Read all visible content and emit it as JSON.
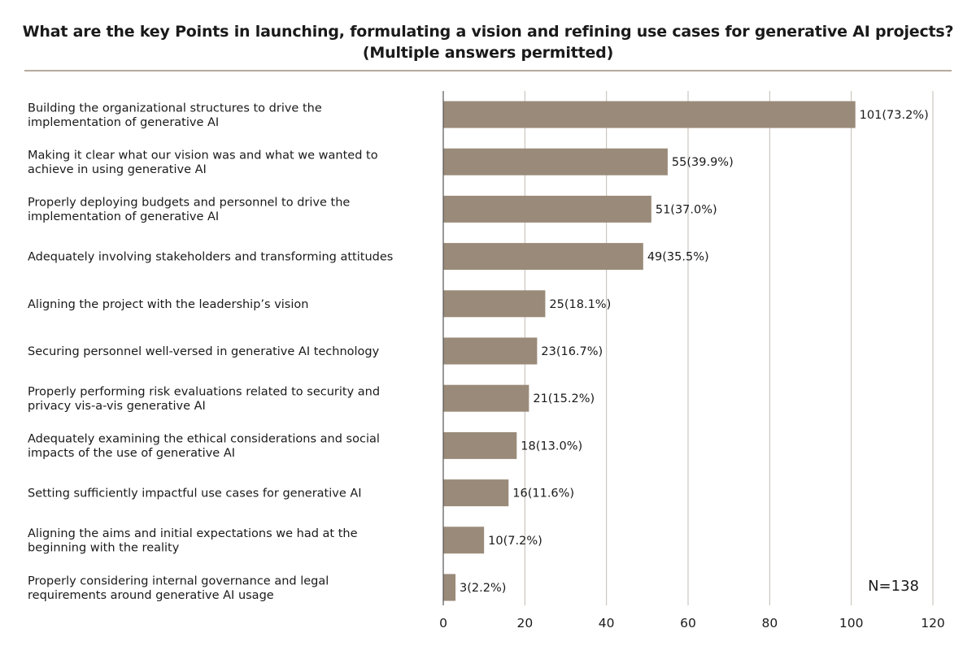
{
  "title": {
    "line1": "What are the key Points in launching, formulating a vision and refining use cases for generative AI projects?",
    "line2": "(Multiple answers permitted)"
  },
  "sample_size": "N=138",
  "colors": {
    "bar": "#9a8a79",
    "grid": "#c2bbb3",
    "axis": "#555555",
    "rule": "#b5aa9e"
  },
  "chart_data": {
    "type": "bar",
    "orientation": "horizontal",
    "categories": [
      [
        "Building the organizational structures to drive the",
        "implementation of generative AI"
      ],
      [
        "Making it clear what our vision was and what we wanted to",
        "achieve in using generative AI"
      ],
      [
        "Properly deploying budgets and personnel to drive the",
        "implementation of generative AI"
      ],
      [
        "Adequately involving stakeholders and transforming attitudes"
      ],
      [
        "Aligning the project with the leadership’s vision"
      ],
      [
        "Securing personnel well-versed in generative AI technology"
      ],
      [
        "Properly performing risk evaluations related to security and",
        "privacy vis-a-vis generative AI"
      ],
      [
        "Adequately examining the ethical considerations and social",
        "impacts of the use of generative AI"
      ],
      [
        "Setting sufficiently impactful use cases for generative AI"
      ],
      [
        "Aligning the aims and initial expectations we had at the",
        "beginning with the reality"
      ],
      [
        "Properly considering internal governance and legal",
        "requirements around generative AI usage"
      ]
    ],
    "values": [
      101,
      55,
      51,
      49,
      25,
      23,
      21,
      18,
      16,
      10,
      3
    ],
    "percents": [
      "73.2%",
      "39.9%",
      "37.0%",
      "35.5%",
      "18.1%",
      "16.7%",
      "15.2%",
      "13.0%",
      "11.6%",
      "7.2%",
      "2.2%"
    ],
    "xlim": [
      0,
      120
    ],
    "xticks": [
      0,
      20,
      40,
      60,
      80,
      100,
      120
    ],
    "grid": true,
    "title": "What are the key Points in launching, formulating a vision and refining use cases for generative AI projects? (Multiple answers permitted)"
  }
}
